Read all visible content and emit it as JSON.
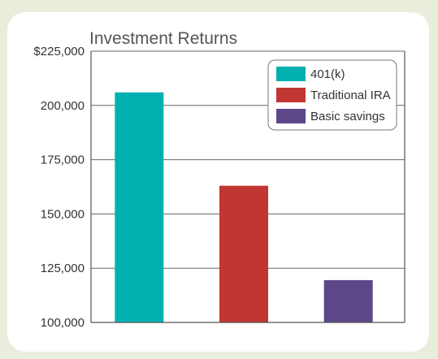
{
  "chart_data": {
    "type": "bar",
    "title": "Investment Returns",
    "xlabel": "",
    "ylabel": "",
    "ylim": [
      100000,
      225000
    ],
    "yticks": [
      {
        "value": 100000,
        "label": "100,000"
      },
      {
        "value": 125000,
        "label": "125,000"
      },
      {
        "value": 150000,
        "label": "150,000"
      },
      {
        "value": 175000,
        "label": "175,000"
      },
      {
        "value": 200000,
        "label": "200,000"
      },
      {
        "value": 225000,
        "label": "$225,000"
      }
    ],
    "categories": [
      "401(k)",
      "Traditional IRA",
      "Basic savings"
    ],
    "values": [
      206000,
      163000,
      119500
    ],
    "colors": [
      "#00b0b1",
      "#c13632",
      "#5c4889"
    ],
    "grid": true,
    "legend_position": "top-right",
    "legend": [
      "401(k)",
      "Traditional IRA",
      "Basic savings"
    ]
  }
}
